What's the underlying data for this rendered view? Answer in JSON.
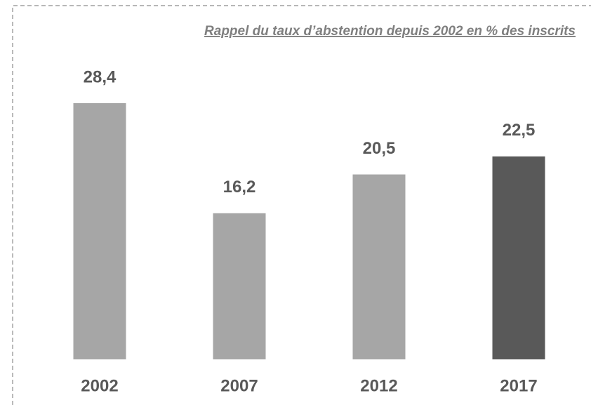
{
  "chart_data": {
    "type": "bar",
    "title": "Rappel du taux d’abstention depuis 2002 en % des inscrits",
    "categories": [
      "2002",
      "2007",
      "2012",
      "2017"
    ],
    "values": [
      28.4,
      16.2,
      20.5,
      22.5
    ],
    "value_labels": [
      "28,4",
      "16,2",
      "20,5",
      "22,5"
    ],
    "colors": [
      "#a6a6a6",
      "#a6a6a6",
      "#a6a6a6",
      "#595959"
    ]
  }
}
